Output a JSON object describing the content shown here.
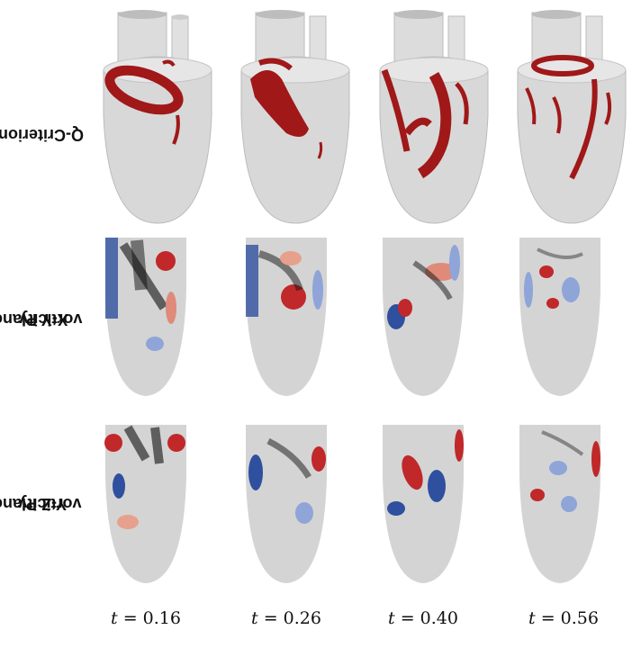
{
  "rows": {
    "q_criterion": {
      "label_line1": "Q-Criterion",
      "label_line2": ""
    },
    "xy_plane": {
      "label_line1": "X-Y Plane",
      "label_line2": "vorticity"
    },
    "yz_plane": {
      "label_line1": "Y-Z Plane",
      "label_line2": "vorticity"
    }
  },
  "times": [
    {
      "prefix": "t",
      "value": "= 0.16"
    },
    {
      "prefix": "t",
      "value": "= 0.26"
    },
    {
      "prefix": "t",
      "value": "= 0.40"
    },
    {
      "prefix": "t",
      "value": "= 0.56"
    }
  ],
  "colors": {
    "vortex_red": "#a01818",
    "vorticity_positive": "#c0282a",
    "vorticity_negative": "#2f4f9f",
    "background_gray": "#d4d4d4",
    "vector_black": "#111111"
  }
}
